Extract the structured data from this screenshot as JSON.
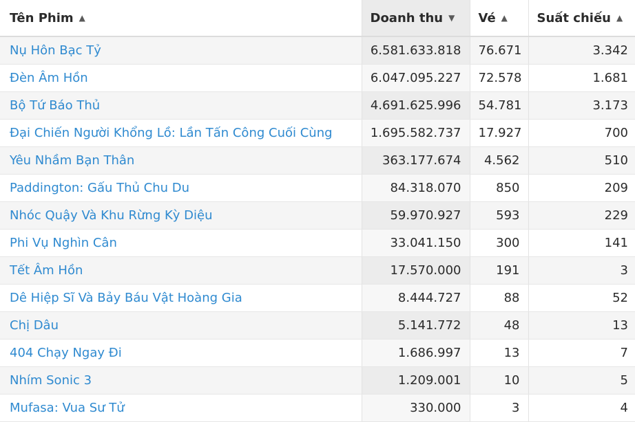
{
  "table": {
    "headers": {
      "title": "Tên Phim",
      "revenue": "Doanh thu",
      "tickets": "Vé",
      "showings": "Suất chiếu"
    },
    "sort": {
      "column": "revenue",
      "direction": "descending"
    },
    "rows": [
      {
        "title": "Nụ Hôn Bạc Tỷ",
        "revenue": "6.581.633.818",
        "tickets": "76.671",
        "showings": "3.342"
      },
      {
        "title": "Đèn Âm Hồn",
        "revenue": "6.047.095.227",
        "tickets": "72.578",
        "showings": "1.681"
      },
      {
        "title": "Bộ Tứ Báo Thủ",
        "revenue": "4.691.625.996",
        "tickets": "54.781",
        "showings": "3.173"
      },
      {
        "title": "Đại Chiến Người Khổng Lồ: Lần Tấn Công Cuối Cùng",
        "revenue": "1.695.582.737",
        "tickets": "17.927",
        "showings": "700"
      },
      {
        "title": "Yêu Nhầm Bạn Thân",
        "revenue": "363.177.674",
        "tickets": "4.562",
        "showings": "510"
      },
      {
        "title": "Paddington: Gấu Thủ Chu Du",
        "revenue": "84.318.070",
        "tickets": "850",
        "showings": "209"
      },
      {
        "title": "Nhóc Quậy Và Khu Rừng Kỳ Diệu",
        "revenue": "59.970.927",
        "tickets": "593",
        "showings": "229"
      },
      {
        "title": "Phi Vụ Nghìn Cân",
        "revenue": "33.041.150",
        "tickets": "300",
        "showings": "141"
      },
      {
        "title": "Tết Âm Hồn",
        "revenue": "17.570.000",
        "tickets": "191",
        "showings": "3"
      },
      {
        "title": "Dê Hiệp Sĩ Và Bảy Báu Vật Hoàng Gia",
        "revenue": "8.444.727",
        "tickets": "88",
        "showings": "52"
      },
      {
        "title": "Chị Dâu",
        "revenue": "5.141.772",
        "tickets": "48",
        "showings": "13"
      },
      {
        "title": "404 Chạy Ngay Đi",
        "revenue": "1.686.997",
        "tickets": "13",
        "showings": "7"
      },
      {
        "title": "Nhím Sonic 3",
        "revenue": "1.209.001",
        "tickets": "10",
        "showings": "5"
      },
      {
        "title": "Mufasa: Vua Sư Tử",
        "revenue": "330.000",
        "tickets": "3",
        "showings": "4"
      }
    ]
  }
}
